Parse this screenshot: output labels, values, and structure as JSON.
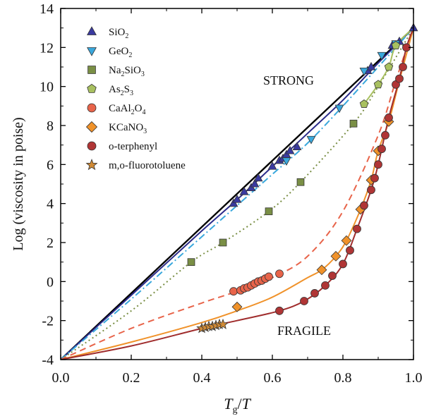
{
  "chart_data": {
    "type": "scatter",
    "xlabel_main": "T",
    "xlabel_sub": "g",
    "xlabel_tail": "/T",
    "ylabel": "Log (viscosity in poise)",
    "xlim": [
      0,
      1
    ],
    "ylim": [
      -4,
      14
    ],
    "xticks": [
      "0.0",
      "0.2",
      "0.4",
      "0.6",
      "0.8",
      "1.0"
    ],
    "yticks": [
      "-4",
      "-2",
      "0",
      "2",
      "4",
      "6",
      "8",
      "10",
      "12",
      "14"
    ],
    "annotations": [
      "STRONG",
      "FRAGILE"
    ],
    "reference_line": {
      "x": [
        0,
        1
      ],
      "y": [
        -4,
        13
      ],
      "color": "#000000"
    },
    "series": [
      {
        "name": "SiO2",
        "label_main": "SiO",
        "label_sub": "2",
        "marker": "triangle-up",
        "color": "#3a3aa0",
        "line_color": "#2b2b8a",
        "dash": "solid",
        "x": [
          0.49,
          0.5,
          0.52,
          0.54,
          0.55,
          0.56,
          0.6,
          0.62,
          0.63,
          0.64,
          0.65,
          0.67,
          0.87,
          0.88,
          0.94,
          0.96,
          1.0
        ],
        "y": [
          4.0,
          4.2,
          4.6,
          4.8,
          5.0,
          5.3,
          5.9,
          6.2,
          6.3,
          6.5,
          6.7,
          6.9,
          10.8,
          11.0,
          12.1,
          12.3,
          13.0
        ],
        "curve_x": [
          0,
          0.2,
          0.4,
          0.5,
          0.6,
          0.7,
          0.8,
          0.9,
          1.0
        ],
        "curve_y": [
          -4,
          -0.7,
          2.6,
          4.2,
          5.9,
          7.6,
          9.3,
          11.2,
          13.0
        ]
      },
      {
        "name": "GeO2",
        "label_main": "GeO",
        "label_sub": "2",
        "marker": "triangle-down",
        "color": "#3aa8dd",
        "line_color": "#3aa8dd",
        "dash": "dashdot",
        "x": [
          0.64,
          0.71,
          0.79,
          0.86,
          0.91,
          0.95
        ],
        "y": [
          6.2,
          7.3,
          8.9,
          10.8,
          11.6,
          12.2
        ],
        "curve_x": [
          0,
          0.2,
          0.4,
          0.5,
          0.6,
          0.7,
          0.8,
          0.9,
          1.0
        ],
        "curve_y": [
          -4,
          -0.9,
          2.3,
          3.9,
          5.5,
          7.1,
          9.0,
          11.0,
          13.0
        ]
      },
      {
        "name": "Na2SiO3",
        "label_main": "Na",
        "label_sub": "2",
        "label_mid": "SiO",
        "label_sub2": "3",
        "marker": "square",
        "color": "#7a8f45",
        "line_color": "#7a8f45",
        "dash": "dot",
        "x": [
          0.37,
          0.46,
          0.59,
          0.68,
          0.83
        ],
        "y": [
          1.0,
          2.0,
          3.6,
          5.1,
          8.1
        ],
        "curve_x": [
          0,
          0.2,
          0.37,
          0.46,
          0.59,
          0.68,
          0.83,
          0.9,
          1.0
        ],
        "curve_y": [
          -4,
          -1.5,
          1.0,
          2.0,
          3.6,
          5.1,
          8.1,
          10.0,
          13.0
        ]
      },
      {
        "name": "As2S3",
        "label_main": "As",
        "label_sub": "2",
        "label_mid": "S",
        "label_sub2": "3",
        "marker": "pentagon",
        "color": "#a8c060",
        "line_color": "#a8c060",
        "dash": "solid",
        "x": [
          0.86,
          0.9,
          0.93,
          0.95
        ],
        "y": [
          9.1,
          10.1,
          11.0,
          12.1
        ],
        "curve_x": [
          0.86,
          0.9,
          0.93,
          0.95,
          1.0
        ],
        "curve_y": [
          9.1,
          10.1,
          11.0,
          12.1,
          13.0
        ]
      },
      {
        "name": "CaAl2O4",
        "label_main": "CaAl",
        "label_sub": "2",
        "label_mid": "O",
        "label_sub2": "4",
        "marker": "circle",
        "color": "#e8644a",
        "line_color": "#e8644a",
        "dash": "dash",
        "x": [
          0.49,
          0.51,
          0.52,
          0.53,
          0.54,
          0.55,
          0.56,
          0.57,
          0.58,
          0.59,
          0.62
        ],
        "y": [
          -0.5,
          -0.45,
          -0.35,
          -0.3,
          -0.2,
          -0.1,
          0.0,
          0.05,
          0.15,
          0.25,
          0.4
        ],
        "curve_x": [
          0,
          0.2,
          0.4,
          0.5,
          0.6,
          0.7,
          0.8,
          0.9,
          0.95,
          1.0
        ],
        "curve_y": [
          -4,
          -2.4,
          -1.1,
          -0.5,
          0.2,
          1.3,
          3.6,
          7.5,
          10.3,
          13.0
        ]
      },
      {
        "name": "KCaNO3",
        "label_main": "KCaNO",
        "label_sub": "3",
        "marker": "diamond",
        "color": "#f0922a",
        "line_color": "#f0922a",
        "dash": "solid",
        "x": [
          0.5,
          0.74,
          0.78,
          0.81,
          0.85,
          0.88,
          0.9,
          0.93
        ],
        "y": [
          -1.3,
          0.6,
          1.3,
          2.1,
          3.7,
          5.2,
          6.7,
          8.2
        ],
        "curve_x": [
          0,
          0.2,
          0.4,
          0.5,
          0.6,
          0.7,
          0.74,
          0.78,
          0.81,
          0.85,
          0.88,
          0.9,
          0.93,
          0.96,
          1.0
        ],
        "curve_y": [
          -4,
          -3.1,
          -2.1,
          -1.5,
          -0.8,
          0.2,
          0.6,
          1.3,
          2.1,
          3.7,
          5.2,
          6.7,
          8.2,
          10.3,
          13.0
        ]
      },
      {
        "name": "o-terphenyl",
        "label_main": "o-terphenyl",
        "marker": "circle",
        "color": "#b03535",
        "line_color": "#a02d2d",
        "dash": "solid",
        "x": [
          0.62,
          0.69,
          0.72,
          0.75,
          0.77,
          0.8,
          0.82,
          0.84,
          0.86,
          0.88,
          0.89,
          0.9,
          0.91,
          0.92,
          0.93,
          0.95,
          0.96,
          0.97,
          0.98
        ],
        "y": [
          -1.5,
          -1.0,
          -0.6,
          -0.2,
          0.3,
          0.9,
          1.6,
          2.7,
          3.9,
          4.7,
          5.3,
          6.0,
          6.8,
          7.5,
          8.4,
          10.1,
          10.4,
          11.0,
          12.0
        ],
        "curve_x": [
          0,
          0.2,
          0.4,
          0.5,
          0.62,
          0.69,
          0.75,
          0.8,
          0.84,
          0.88,
          0.9,
          0.93,
          0.96,
          0.98,
          1.0
        ],
        "curve_y": [
          -4,
          -3.3,
          -2.4,
          -2.0,
          -1.5,
          -1.0,
          -0.2,
          0.9,
          2.7,
          4.7,
          6.0,
          8.4,
          10.4,
          12.0,
          13.0
        ]
      },
      {
        "name": "m,o-fluorotoluene",
        "label_main": "m,o-fluorotoluene",
        "marker": "star",
        "color": "#d08a35",
        "line_color": "#d08a35",
        "dash": "none",
        "x": [
          0.4,
          0.41,
          0.42,
          0.43,
          0.44,
          0.45,
          0.46
        ],
        "y": [
          -2.4,
          -2.35,
          -2.3,
          -2.3,
          -2.25,
          -2.2,
          -2.2
        ],
        "curve_x": [],
        "curve_y": []
      }
    ]
  }
}
